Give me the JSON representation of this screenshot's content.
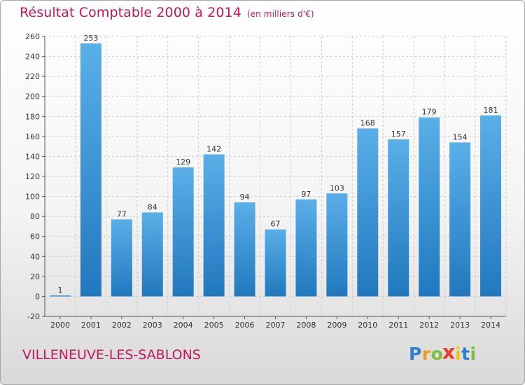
{
  "header": {
    "title": "Résultat Comptable 2000 à 2014",
    "subtitle": "(en milliers d'€)"
  },
  "footer": {
    "city": "VILLENEUVE-LES-SABLONS",
    "logo_letters": [
      "P",
      "r",
      "o",
      "x",
      "i",
      "t",
      "i"
    ]
  },
  "colors": {
    "title": "#c2185b",
    "bar_light": "#5aafe8",
    "bar_dark": "#2178bd",
    "grid": "#cccccc",
    "logo_letters": [
      "#2e7fd0",
      "#f29a1f",
      "#7cbf3c",
      "#e8402a",
      "#f2c41a",
      "#2e7fd0",
      "#7cbf3c"
    ]
  },
  "chart_data": {
    "type": "bar",
    "categories": [
      "2000",
      "2001",
      "2002",
      "2003",
      "2004",
      "2005",
      "2006",
      "2007",
      "2008",
      "2009",
      "2010",
      "2011",
      "2012",
      "2013",
      "2014"
    ],
    "values": [
      1,
      253,
      77,
      84,
      129,
      142,
      94,
      67,
      97,
      103,
      168,
      157,
      179,
      154,
      181
    ],
    "ylim": [
      -20,
      260
    ],
    "yticks": [
      -20,
      0,
      20,
      40,
      60,
      80,
      100,
      120,
      140,
      160,
      180,
      200,
      220,
      240,
      260
    ],
    "grid": true
  }
}
